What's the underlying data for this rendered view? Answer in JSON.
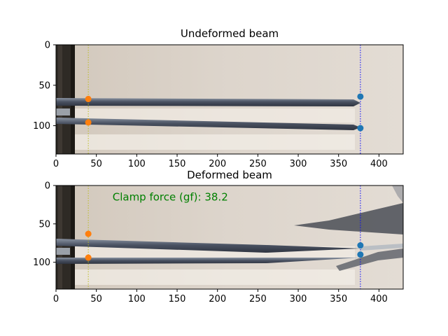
{
  "chart_data": [
    {
      "type": "scatter",
      "title": "Undeformed beam",
      "xlim": [
        0,
        430
      ],
      "ylim": [
        135,
        0
      ],
      "y_inverted": true,
      "xticks": [
        "0",
        "50",
        "100",
        "150",
        "200",
        "250",
        "300",
        "350",
        "400"
      ],
      "yticks": [
        "0",
        "50",
        "100"
      ],
      "vlines": [
        {
          "x": 40,
          "color": "#bcbd22",
          "style": "dotted"
        },
        {
          "x": 377,
          "color": "#0000ff",
          "style": "dotted"
        }
      ],
      "series": [
        {
          "color": "#ff7f0e",
          "points": [
            [
              40,
              67
            ],
            [
              40,
              96
            ]
          ]
        },
        {
          "color": "#1f77b4",
          "points": [
            [
              377,
              64
            ],
            [
              377,
              103
            ]
          ]
        }
      ],
      "annotation": ""
    },
    {
      "type": "scatter",
      "title": "Deformed beam",
      "xlim": [
        0,
        430
      ],
      "ylim": [
        135,
        0
      ],
      "y_inverted": true,
      "xticks": [
        "0",
        "50",
        "100",
        "150",
        "200",
        "250",
        "300",
        "350",
        "400"
      ],
      "yticks": [
        "0",
        "50",
        "100"
      ],
      "vlines": [
        {
          "x": 40,
          "color": "#bcbd22",
          "style": "dotted"
        },
        {
          "x": 377,
          "color": "#0000ff",
          "style": "dotted"
        }
      ],
      "series": [
        {
          "color": "#ff7f0e",
          "points": [
            [
              40,
              63
            ],
            [
              40,
              94
            ]
          ]
        },
        {
          "color": "#1f77b4",
          "points": [
            [
              377,
              78
            ],
            [
              377,
              90
            ]
          ]
        }
      ],
      "annotation": "Clamp force (gf): 38.2",
      "annotation_at": [
        70,
        15
      ],
      "annotation_color": "#008000"
    }
  ]
}
